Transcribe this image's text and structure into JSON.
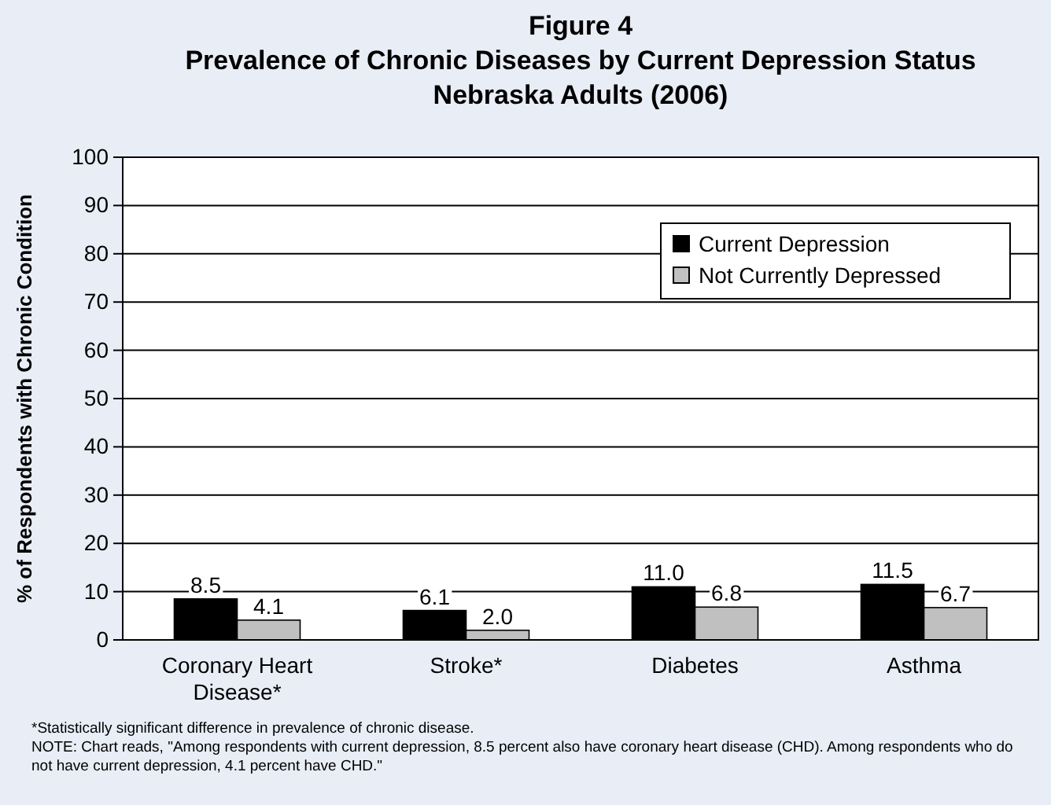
{
  "chart_data": {
    "type": "bar",
    "title": "Figure 4\nPrevalence of Chronic Diseases by Current Depression Status\nNebraska Adults (2006)",
    "ylabel": "% of Respondents with Chronic Condition",
    "categories": [
      "Coronary Heart Disease*",
      "Stroke*",
      "Diabetes",
      "Asthma"
    ],
    "series": [
      {
        "name": "Current Depression",
        "color": "#000000",
        "values": [
          8.5,
          6.1,
          11.0,
          11.5
        ],
        "value_labels": [
          "8.5",
          "6.1",
          "11.0",
          "11.5"
        ]
      },
      {
        "name": "Not Currently Depressed",
        "color": "#c0c0c0",
        "values": [
          4.1,
          2.0,
          6.8,
          6.7
        ],
        "value_labels": [
          "4.1",
          "2.0",
          "6.8",
          "6.7"
        ]
      }
    ],
    "ylim": [
      0,
      100
    ],
    "yticks": [
      0,
      10,
      20,
      30,
      40,
      50,
      60,
      70,
      80,
      90,
      100
    ],
    "grid": "y",
    "legend": "top right",
    "annotations": [
      "*Statistically significant difference in prevalence of chronic disease.",
      "NOTE: Chart reads, \"Among respondents with current depression, 8.5 percent also have coronary heart disease (CHD). Among respondents who do not have current depression, 4.1 percent have CHD.\""
    ]
  }
}
